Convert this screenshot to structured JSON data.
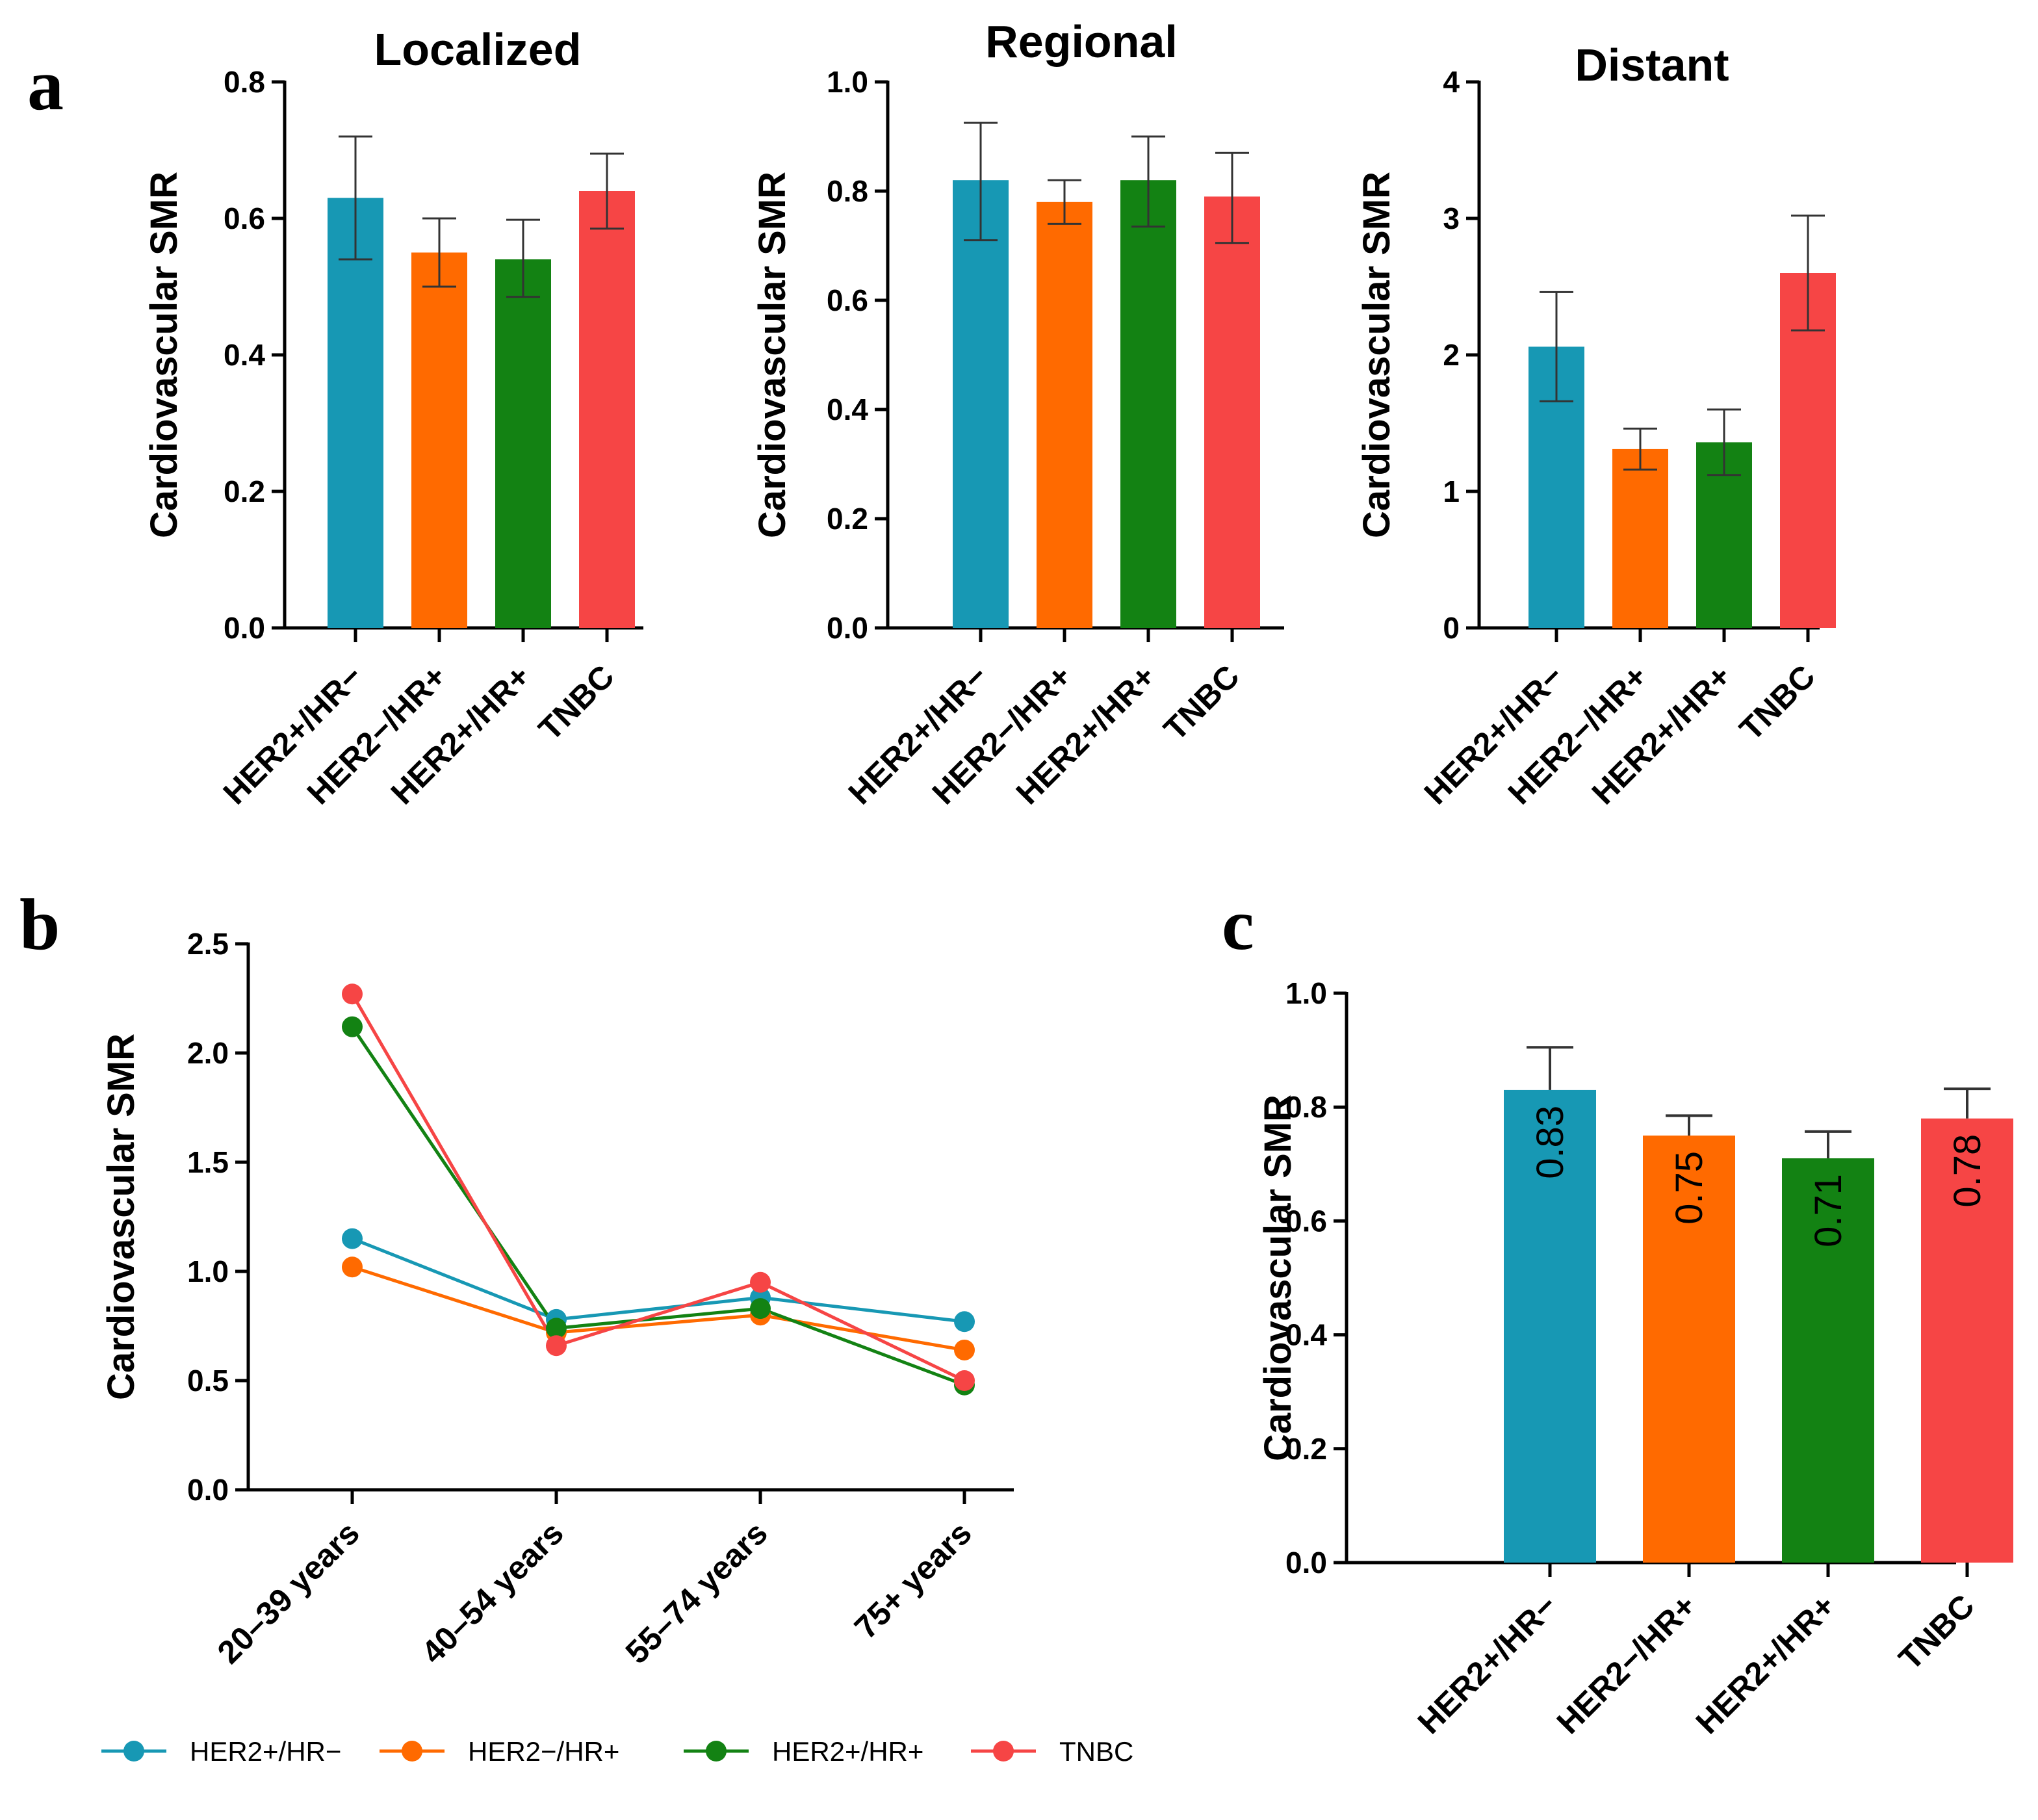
{
  "panels": {
    "a": "a",
    "b": "b",
    "c": "c"
  },
  "colors": {
    "HER2+/HR−": "#1798b4",
    "HER2−/HR+": "#ff6a00",
    "HER2+/HR+": "#138213",
    "TNBC": "#f64545"
  },
  "chart_data": [
    {
      "id": "a_localized",
      "type": "bar",
      "title": "Localized",
      "xlabel": "",
      "ylabel": "Cardiovascular SMR",
      "categories": [
        "HER2+/HR−",
        "HER2−/HR+",
        "HER2+/HR+",
        "TNBC"
      ],
      "values": [
        0.63,
        0.55,
        0.54,
        0.64
      ],
      "error_low": [
        0.54,
        0.5,
        0.485,
        0.585
      ],
      "error_high": [
        0.72,
        0.6,
        0.598,
        0.695
      ],
      "ylim": [
        0,
        0.8
      ],
      "yticks": [
        "0.0",
        "0.2",
        "0.4",
        "0.6",
        "0.8"
      ],
      "yticks_values": [
        0,
        0.2,
        0.4,
        0.6,
        0.8
      ],
      "grid": false
    },
    {
      "id": "a_regional",
      "type": "bar",
      "title": "Regional",
      "xlabel": "",
      "ylabel": "Cardiovascular SMR",
      "categories": [
        "HER2+/HR−",
        "HER2−/HR+",
        "HER2+/HR+",
        "TNBC"
      ],
      "values": [
        0.82,
        0.78,
        0.82,
        0.79
      ],
      "error_low": [
        0.71,
        0.74,
        0.735,
        0.705
      ],
      "error_high": [
        0.925,
        0.82,
        0.9,
        0.87
      ],
      "ylim": [
        0,
        1.0
      ],
      "yticks": [
        "0.0",
        "0.2",
        "0.4",
        "0.6",
        "0.8",
        "1.0"
      ],
      "yticks_values": [
        0,
        0.2,
        0.4,
        0.6,
        0.8,
        1.0
      ],
      "grid": false
    },
    {
      "id": "a_distant",
      "type": "bar",
      "title": "Distant",
      "xlabel": "",
      "ylabel": "Cardiovascular SMR",
      "categories": [
        "HER2+/HR−",
        "HER2−/HR+",
        "HER2+/HR+",
        "TNBC"
      ],
      "values": [
        2.06,
        1.31,
        1.36,
        2.6
      ],
      "error_low": [
        1.66,
        1.16,
        1.12,
        2.18
      ],
      "error_high": [
        2.46,
        1.46,
        1.6,
        3.02
      ],
      "ylim": [
        0,
        4
      ],
      "yticks": [
        "0",
        "1",
        "2",
        "3",
        "4"
      ],
      "yticks_values": [
        0,
        1,
        2,
        3,
        4
      ],
      "grid": false
    },
    {
      "id": "b_age",
      "type": "line",
      "title": "",
      "xlabel": "",
      "ylabel": "Cardiovascular SMR",
      "categories": [
        "20–39 years",
        "40–54 years",
        "55–74 years",
        "75+ years"
      ],
      "series": [
        {
          "name": "HER2+/HR−",
          "values": [
            1.15,
            0.78,
            0.88,
            0.77
          ]
        },
        {
          "name": "HER2−/HR+",
          "values": [
            1.02,
            0.72,
            0.8,
            0.64
          ]
        },
        {
          "name": "HER2+/HR+",
          "values": [
            2.12,
            0.74,
            0.83,
            0.48
          ]
        },
        {
          "name": "TNBC",
          "values": [
            2.27,
            0.66,
            0.95,
            0.5
          ]
        }
      ],
      "legend": [
        "HER2+/HR−",
        "HER2−/HR+",
        "HER2+/HR+",
        "TNBC"
      ],
      "legend_position": "bottom",
      "ylim": [
        0,
        2.5
      ],
      "yticks": [
        "0.0",
        "0.5",
        "1.0",
        "1.5",
        "2.0",
        "2.5"
      ],
      "yticks_values": [
        0,
        0.5,
        1.0,
        1.5,
        2.0,
        2.5
      ],
      "grid": false
    },
    {
      "id": "c_overall",
      "type": "bar",
      "title": "",
      "xlabel": "",
      "ylabel": "Cardiovascular SMR",
      "categories": [
        "HER2+/HR−",
        "HER2−/HR+",
        "HER2+/HR+",
        "TNBC"
      ],
      "values": [
        0.83,
        0.75,
        0.71,
        0.78
      ],
      "value_labels": [
        "0.83",
        "0.75",
        "0.71",
        "0.78"
      ],
      "error_high": [
        0.905,
        0.785,
        0.757,
        0.832
      ],
      "ylim": [
        0,
        1.0
      ],
      "yticks": [
        "0.0",
        "0.2",
        "0.4",
        "0.6",
        "0.8",
        "1.0"
      ],
      "yticks_values": [
        0,
        0.2,
        0.4,
        0.6,
        0.8,
        1.0
      ],
      "grid": false
    }
  ]
}
